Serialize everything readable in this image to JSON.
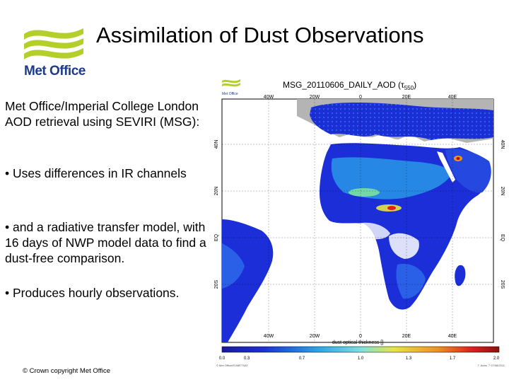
{
  "slide": {
    "title": "Assimilation of Dust Observations",
    "logo_text": "Met Office",
    "paragraphs": [
      "Met Office/Imperial College London AOD retrieval using SEVIRI (MSG):",
      "• Uses differences in IR channels",
      "• and a radiative transfer model, with 16 days of NWP model data to find a dust-free comparison.",
      "• Produces hourly observations."
    ],
    "copyright": "© Crown copyright   Met Office"
  },
  "figure": {
    "logo_text": "Met Office",
    "title": "MSG_20110606_DAILY_AOD (τ",
    "title_sub": "550",
    "title_close": ")",
    "top_lon_labels": [
      "40W",
      "20W",
      "0",
      "20E",
      "40E"
    ],
    "bottom_lon_labels": [
      "40W",
      "20W",
      "0",
      "20E",
      "40E"
    ],
    "lat_labels": [
      "40N",
      "20N",
      "EQ",
      "20S"
    ],
    "colorbar_label": "dust optical thickness []",
    "colorbar_ticks": [
      "0.0",
      "0.3",
      "0.7",
      "1.0",
      "1.3",
      "1.7",
      "2.0"
    ],
    "footer_left": "© Met Office/EUMETSAT",
    "footer_right": "T. Aubs. 7 07/08/2011",
    "colors": {
      "ocean": "#ffffff",
      "land_grey": "#b4b4b4",
      "dust_low": "#1c2ed8",
      "dust_mid": "#2aa7e8",
      "dust_high": "#f0d020",
      "dust_max": "#b01010"
    }
  }
}
